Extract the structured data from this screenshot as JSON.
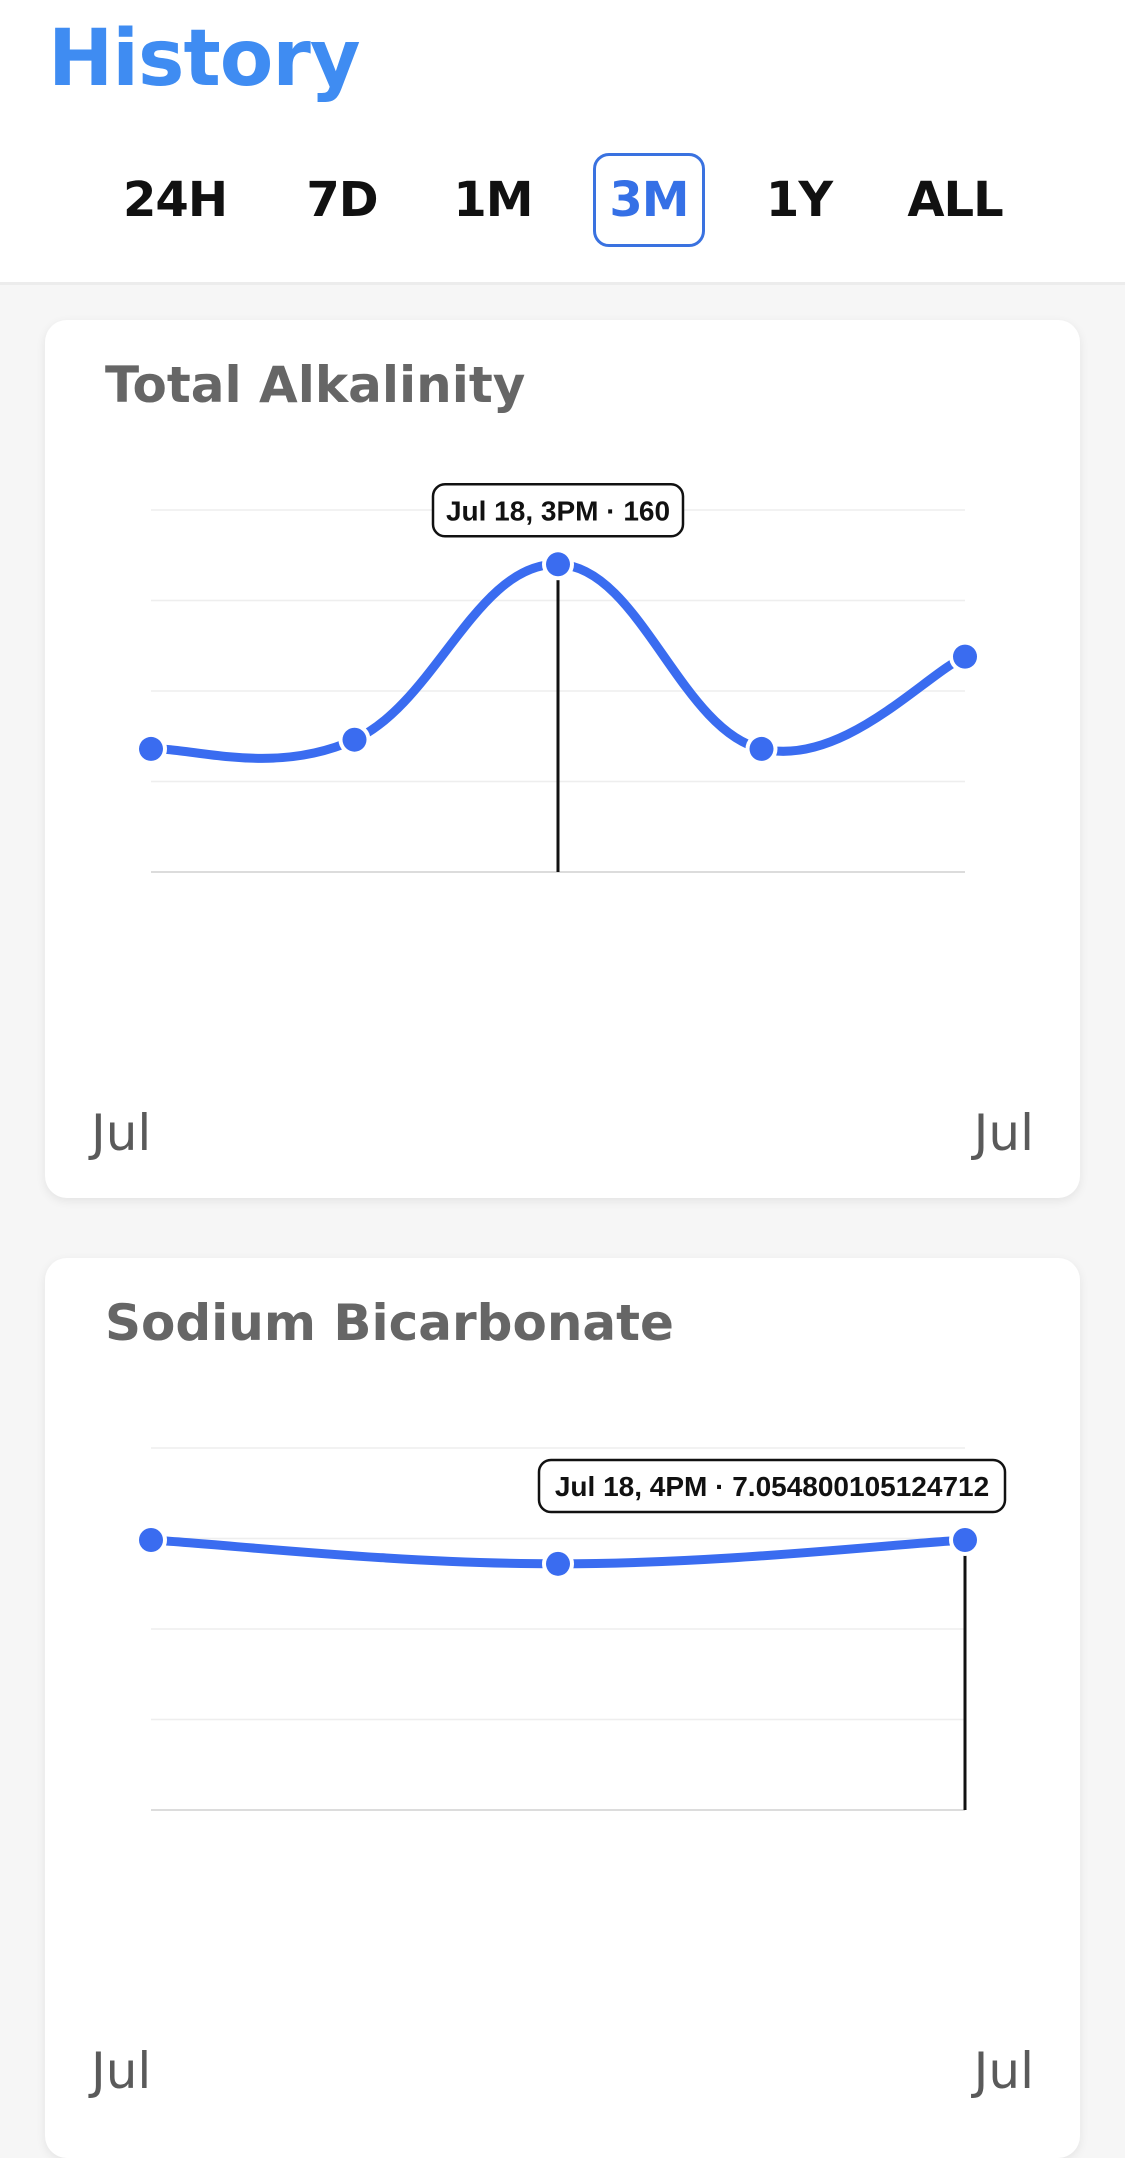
{
  "header": {
    "title": "History",
    "ranges": [
      {
        "label": "24H",
        "active": false
      },
      {
        "label": "7D",
        "active": false
      },
      {
        "label": "1M",
        "active": false
      },
      {
        "label": "3M",
        "active": true
      },
      {
        "label": "1Y",
        "active": false
      },
      {
        "label": "ALL",
        "active": false
      }
    ]
  },
  "colors": {
    "title": "#3f8cf2",
    "line": "#3a6cf0",
    "active_tab": "#3570e6"
  },
  "charts": [
    {
      "title": "Total Alkalinity",
      "x_start_label": "Jul",
      "x_end_label": "Jul",
      "tooltip": "Jul 18, 3PM · 160",
      "chart_data": {
        "type": "line",
        "points": [
          100,
          103,
          160,
          100,
          130
        ],
        "highlight_index": 2,
        "ylim": [
          60,
          160
        ],
        "grid": true
      }
    },
    {
      "title": "Sodium Bicarbonate",
      "x_start_label": "Jul",
      "x_end_label": "Jul",
      "tooltip": "Jul 18, 4PM · 7.054800105124712",
      "chart_data": {
        "type": "line",
        "points": [
          7.0548,
          6.9,
          7.054800105124712
        ],
        "highlight_index": 2,
        "ylim": [
          5.3,
          7.3
        ],
        "grid": true
      }
    }
  ]
}
